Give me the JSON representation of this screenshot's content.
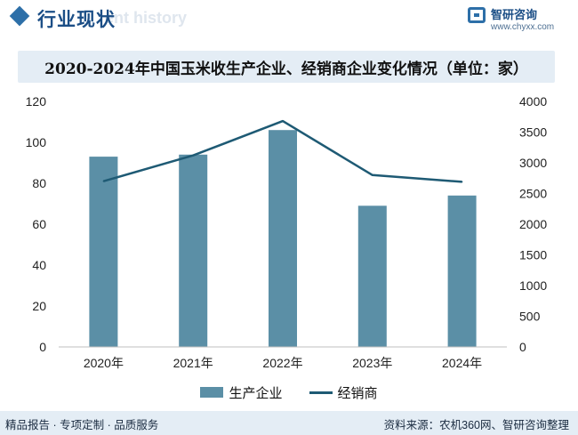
{
  "header": {
    "section_title": "行业现状",
    "ghost_text": "ent history",
    "logo_name": "智研咨询",
    "logo_url": "www.chyxx.com"
  },
  "colors": {
    "bar": "#5b8fa6",
    "line": "#1e5a74",
    "accent": "#2d6fa8",
    "banner_bg": "#e4edf5"
  },
  "chart_data": {
    "type": "bar",
    "title": "2020-2024年中国玉米收生产企业、经销商企业变化情况（单位：家）",
    "categories": [
      "2020年",
      "2021年",
      "2022年",
      "2023年",
      "2024年"
    ],
    "series": [
      {
        "name": "生产企业",
        "type": "bar",
        "axis": "left",
        "values": [
          93,
          94,
          106,
          69,
          74
        ]
      },
      {
        "name": "经销商",
        "type": "line",
        "axis": "right",
        "values": [
          2700,
          3120,
          3680,
          2800,
          2690
        ]
      }
    ],
    "y_left": {
      "ylim": [
        0,
        120
      ],
      "ticks": [
        0,
        20,
        40,
        60,
        80,
        100,
        120
      ]
    },
    "y_right": {
      "ylim": [
        0,
        4000
      ],
      "ticks": [
        0,
        500,
        1000,
        1500,
        2000,
        2500,
        3000,
        3500,
        4000
      ]
    },
    "grid": false,
    "legend_position": "bottom"
  },
  "footer": {
    "left": "精品报告 · 专项定制 · 品质服务",
    "right": "资料来源：农机360网、智研咨询整理"
  }
}
